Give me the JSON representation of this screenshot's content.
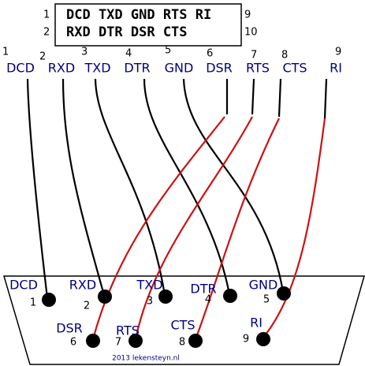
{
  "header_box": {
    "rows": [
      {
        "left": "1",
        "text": "DCD TXD GND RTS RI",
        "right": "9"
      },
      {
        "left": "2",
        "text": "RXD DTR DSR CTS",
        "right": "10"
      }
    ]
  },
  "top_pins": [
    {
      "number": "1",
      "name": "DCD"
    },
    {
      "number": "2",
      "name": "RXD"
    },
    {
      "number": "3",
      "name": "TXD"
    },
    {
      "number": "4",
      "name": "DTR"
    },
    {
      "number": "5",
      "name": "GND"
    },
    {
      "number": "6",
      "name": "DSR"
    },
    {
      "number": "7",
      "name": "RTS"
    },
    {
      "number": "8",
      "name": "CTS"
    },
    {
      "number": "9",
      "name": "RI"
    }
  ],
  "connector_pins": [
    {
      "name": "DCD",
      "number": "1"
    },
    {
      "name": "RXD",
      "number": "2"
    },
    {
      "name": "TXD",
      "number": "3"
    },
    {
      "name": "DTR",
      "number": "4"
    },
    {
      "name": "GND",
      "number": "5"
    },
    {
      "name": "DSR",
      "number": "6"
    },
    {
      "name": "RTS",
      "number": "7"
    },
    {
      "name": "CTS",
      "number": "8"
    },
    {
      "name": "RI",
      "number": "9"
    }
  ],
  "credit": "2013 lekensteyn.nl"
}
